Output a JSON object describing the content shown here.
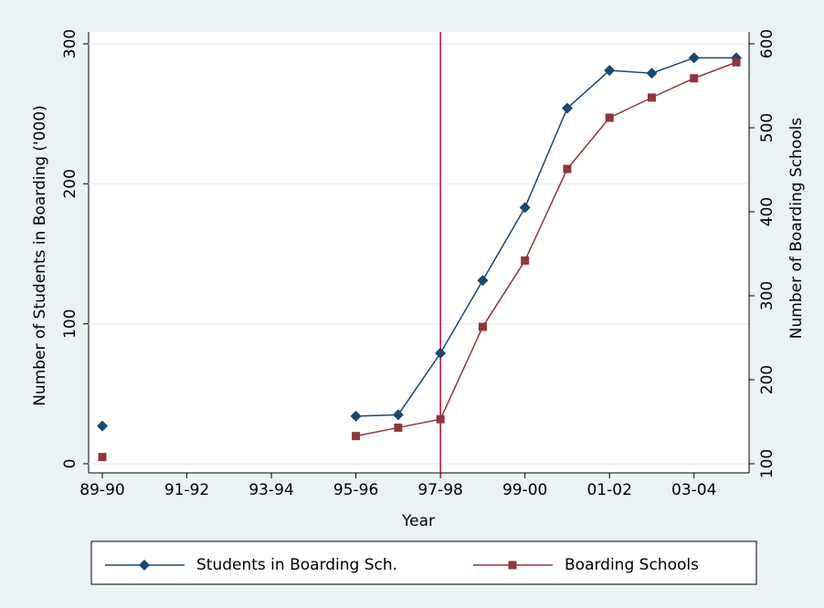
{
  "chart_data": {
    "type": "line",
    "x_label": "Year",
    "y_label": "Number of Students in Boarding ('000)",
    "y2_label": "Number of Boarding Schools",
    "categories": [
      "89-90",
      null,
      "91-92",
      null,
      "93-94",
      null,
      "95-96",
      null,
      "97-98",
      null,
      "99-00",
      null,
      "01-02",
      null,
      "03-04",
      null
    ],
    "series": [
      {
        "name": "Students in Boarding Sch.",
        "color": "#1a476f",
        "marker": "diamond",
        "values": [
          27,
          null,
          null,
          null,
          null,
          null,
          34,
          35,
          79,
          131,
          183,
          254,
          281,
          279,
          290,
          290
        ]
      },
      {
        "name": "Boarding Schools",
        "color": "#90353b",
        "marker": "square",
        "axis": "y2",
        "values": [
          108,
          null,
          null,
          null,
          null,
          null,
          133,
          143,
          153,
          263,
          342,
          451,
          512,
          536,
          559,
          578
        ]
      }
    ],
    "ylim": [
      0,
      300
    ],
    "yticks": [
      0,
      100,
      200,
      300
    ],
    "y2lim": [
      100,
      600
    ],
    "y2ticks": [
      100,
      200,
      300,
      400,
      500,
      600
    ],
    "grid": true,
    "reference_line": {
      "x": "97-98",
      "color": "#c10534"
    },
    "legend": "bottom"
  }
}
